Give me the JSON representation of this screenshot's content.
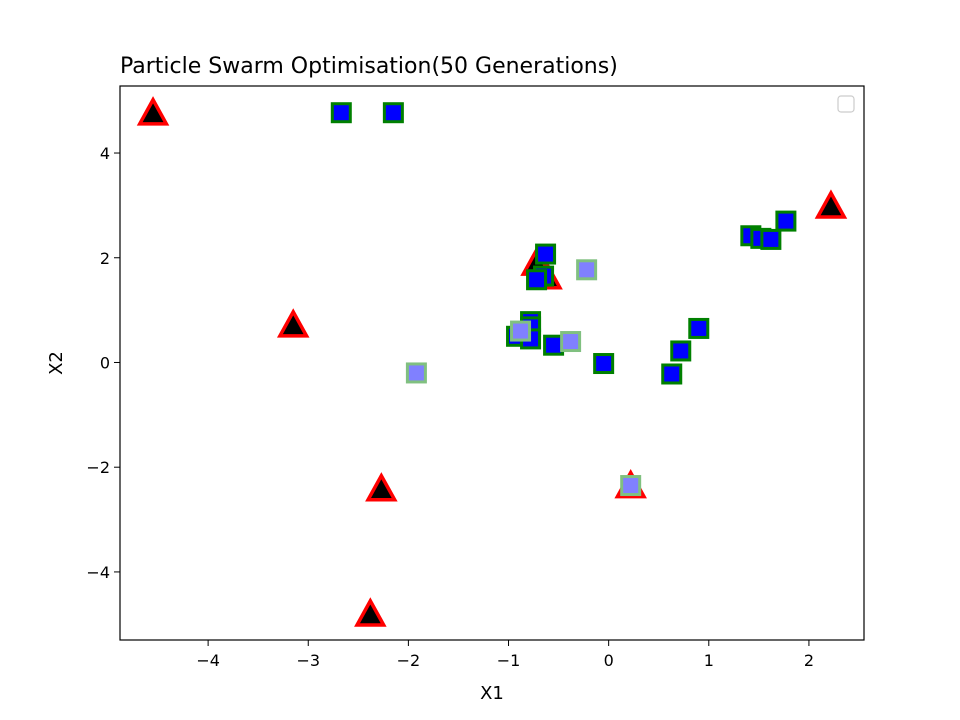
{
  "chart_data": {
    "type": "scatter",
    "title": "Particle Swarm Optimisation(50 Generations)",
    "xlabel": "X1",
    "ylabel": "X2",
    "xlim": [
      -4.88,
      2.55
    ],
    "ylim": [
      -5.3,
      5.28
    ],
    "xticks": [
      -4,
      -3,
      -2,
      -1,
      0,
      1,
      2
    ],
    "yticks": [
      -4,
      -2,
      0,
      2,
      4
    ],
    "xtick_labels": [
      "−4",
      "−3",
      "−2",
      "−1",
      "0",
      "1",
      "2"
    ],
    "ytick_labels": [
      "−4",
      "−2",
      "0",
      "2",
      "4"
    ],
    "grid": false,
    "legend": "top-right (empty)",
    "series": [
      {
        "marker": "triangle",
        "color": "#000000",
        "edge_color": "#ff0000",
        "points": [
          [
            -4.55,
            4.75
          ],
          [
            2.22,
            2.97
          ],
          [
            -0.72,
            1.88
          ],
          [
            -0.62,
            1.62
          ],
          [
            -3.15,
            0.7
          ],
          [
            0.22,
            -2.37
          ],
          [
            -2.27,
            -2.43
          ],
          [
            -2.38,
            -4.82
          ]
        ]
      },
      {
        "marker": "square",
        "color": "#0000ff",
        "edge_color": "#008000",
        "points": [
          [
            -2.67,
            4.77
          ],
          [
            -2.15,
            4.77
          ],
          [
            1.77,
            2.7
          ],
          [
            1.42,
            2.42
          ],
          [
            1.52,
            2.37
          ],
          [
            1.62,
            2.35
          ],
          [
            -0.63,
            2.07
          ],
          [
            -0.65,
            1.65
          ],
          [
            -0.72,
            1.58
          ],
          [
            -0.78,
            0.78
          ],
          [
            -0.78,
            0.68
          ],
          [
            -0.92,
            0.5
          ],
          [
            -0.78,
            0.45
          ],
          [
            -0.55,
            0.33
          ],
          [
            -0.05,
            -0.02
          ],
          [
            0.9,
            0.65
          ],
          [
            0.72,
            0.22
          ],
          [
            0.63,
            -0.22
          ]
        ]
      },
      {
        "marker": "square",
        "color": "#8080ff",
        "edge_color": "#80c080",
        "points": [
          [
            -0.22,
            1.77
          ],
          [
            -0.38,
            0.4
          ],
          [
            -1.92,
            -0.2
          ],
          [
            0.22,
            -2.35
          ],
          [
            -0.88,
            0.6
          ]
        ]
      }
    ]
  }
}
